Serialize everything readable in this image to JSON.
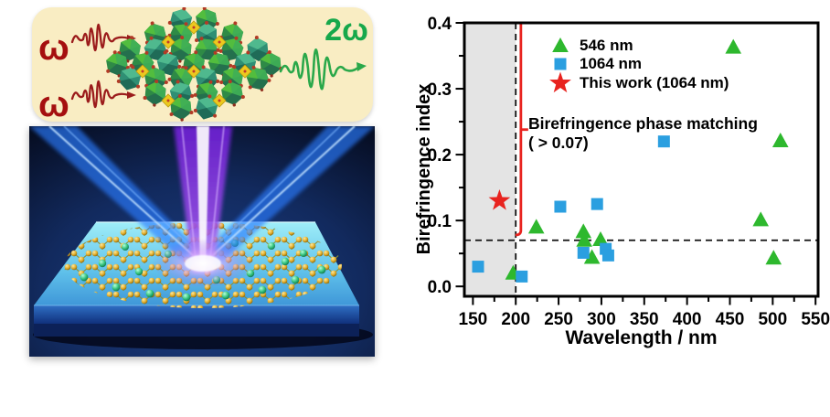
{
  "figure": {
    "left_panel": {
      "omega_in": "ω",
      "omega_out": "2ω",
      "description_icons": [
        "input-pulse-icon",
        "crystal-structure-illustration",
        "output-pulse-icon",
        "laser-beams-illustration",
        "monolayer-on-substrate-illustration"
      ]
    }
  },
  "chart_data": {
    "type": "scatter",
    "title": "",
    "xlabel": "Wavelength / nm",
    "ylabel": "Birefringence index",
    "xlim": [
      140,
      553
    ],
    "ylim": [
      -0.015,
      0.4
    ],
    "xticks": [
      150,
      200,
      250,
      300,
      350,
      400,
      450,
      500,
      550
    ],
    "xtick_minor_step": 25,
    "ytick_values": [
      0,
      0.1,
      0.2,
      0.3,
      0.4
    ],
    "ytick_labels": [
      "0.0",
      "0.1",
      "0.2",
      "0.3",
      "0.4"
    ],
    "ytick_minor_step": 0.05,
    "grid": false,
    "legend_position": "inside-top-left",
    "shaded_region": {
      "x_from": 140,
      "x_to": 200,
      "color": "#e4e4e4"
    },
    "dashed_vline_x": 200,
    "dashed_hline_y": 0.07,
    "red_marker_line": {
      "x": 206,
      "y_from": 0.078,
      "y_to": 0.398,
      "pointer_y": 0.238,
      "color": "#e8231f"
    },
    "annotation": {
      "line1": "Birefringence phase matching",
      "line2": "( > 0.07)"
    },
    "series": [
      {
        "name": "546 nm",
        "marker": "triangle",
        "color": "#2eb82e",
        "points": [
          [
            197,
            0.02
          ],
          [
            224,
            0.09
          ],
          [
            279,
            0.083
          ],
          [
            280,
            0.07
          ],
          [
            299,
            0.071
          ],
          [
            289,
            0.044
          ],
          [
            454,
            0.363
          ],
          [
            486,
            0.101
          ],
          [
            501,
            0.043
          ],
          [
            509,
            0.221
          ]
        ]
      },
      {
        "name": "1064 nm",
        "marker": "square",
        "color": "#2b9fe0",
        "points": [
          [
            156,
            0.03
          ],
          [
            207,
            0.015
          ],
          [
            252,
            0.121
          ],
          [
            279,
            0.051
          ],
          [
            295,
            0.125
          ],
          [
            305,
            0.057
          ],
          [
            308,
            0.047
          ],
          [
            373,
            0.22
          ]
        ]
      },
      {
        "name": "This work (1064 nm)",
        "marker": "star",
        "color": "#e8231f",
        "points": [
          [
            181,
            0.13
          ]
        ]
      }
    ]
  }
}
